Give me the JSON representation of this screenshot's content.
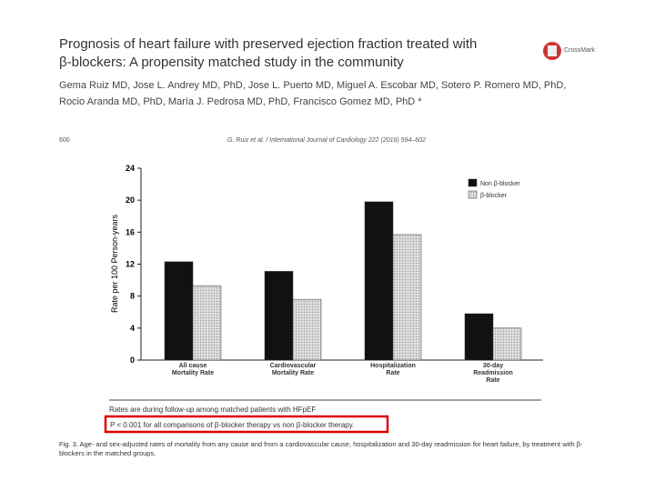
{
  "header": {
    "title_line1": "Prognosis of heart failure with preserved ejection fraction treated with",
    "title_line2": "β-blockers: A propensity matched study in the community",
    "authors_line1": "Gema Ruiz MD, Jose L. Andrey MD, PhD, Jose L. Puerto MD, Miguel A. Escobar MD, Sotero P. Romero MD, PhD,",
    "authors_line2": "Rocio Aranda MD, PhD, María J. Pedrosa MD, PhD, Francisco Gomez MD, PhD *",
    "logo_text": "CrossMark",
    "page_number": "600",
    "journal": "G. Ruiz et al. / International Journal of Cardiology 222 (2016) 594–602"
  },
  "chart_data": {
    "type": "bar",
    "categories": [
      "All cause\nMortality Rate",
      "Cardiovascular\nMortality Rate",
      "Hospitalization\nRate",
      "30-day\nReadmission\nRate"
    ],
    "series": [
      {
        "name": "Non β-blocker",
        "color": "#111111",
        "values": [
          12.3,
          11.1,
          19.8,
          5.8
        ]
      },
      {
        "name": "β-blocker",
        "color": "#dcdcdc",
        "values": [
          9.3,
          7.6,
          15.7,
          4.0
        ]
      }
    ],
    "y_label": "Rate per 100 Person-years",
    "ylim": [
      0,
      24
    ],
    "yticks": [
      0,
      4,
      8,
      12,
      16,
      20,
      24
    ],
    "legend": "upper right",
    "note": "Rates are during follow-up among matched patients with HFpEF",
    "highlight": "P < 0.001 for all comparisons of β-blocker therapy vs non β-blocker therapy."
  },
  "caption": "Fig. 3. Age- and sex-adjusted rates of mortality from any cause and from a cardiovascular cause, hospitalization and 30-day readmission for heart failure, by treatment with β-blockers in the matched groups."
}
